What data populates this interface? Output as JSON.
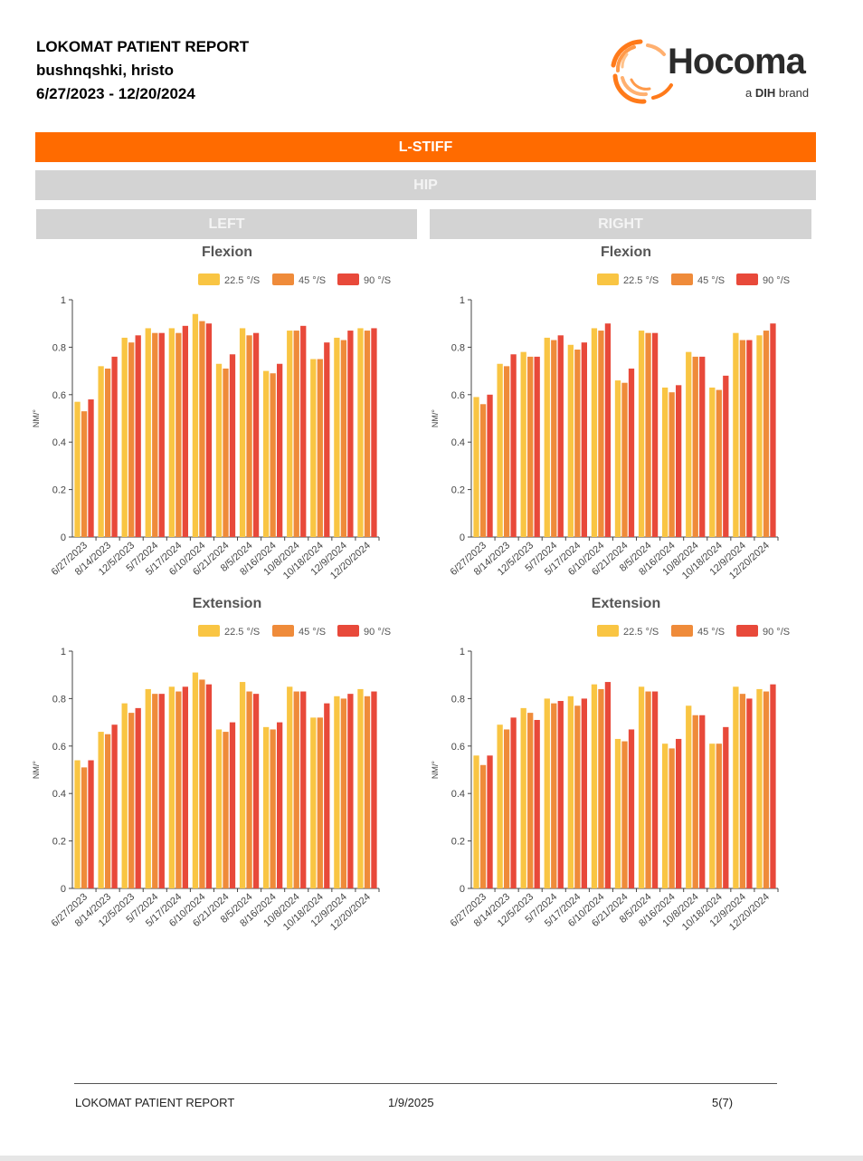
{
  "header": {
    "title": "LOKOMAT PATIENT REPORT",
    "patient": "bushnqshki, hristo",
    "date_range": "6/27/2023 - 12/20/2024"
  },
  "logo": {
    "name": "Hocoma",
    "sub_prefix": "a ",
    "sub_brand": "DIH",
    "sub_suffix": " brand",
    "icon": "sunburst-logo-icon",
    "color": "#ff7a1a"
  },
  "sections": {
    "module": "L-STIFF",
    "joint": "HIP",
    "left": "LEFT",
    "right": "RIGHT"
  },
  "colors": {
    "accent": "#ff6b00",
    "band": "#d3d3d3",
    "series": [
      "#f9c543",
      "#ef8b3a",
      "#e8493a"
    ]
  },
  "chart_data": [
    {
      "type": "bar",
      "side": "LEFT",
      "title": "Flexion",
      "ylabel": "NM/°",
      "ylim": [
        0,
        1
      ],
      "yticks": [
        "0",
        "0.2",
        "0.4",
        "0.6",
        "0.8",
        "1"
      ],
      "categories": [
        "6/27/2023",
        "8/14/2023",
        "12/5/2023",
        "5/7/2024",
        "5/17/2024",
        "6/10/2024",
        "6/21/2024",
        "8/5/2024",
        "8/16/2024",
        "10/8/2024",
        "10/18/2024",
        "12/9/2024",
        "12/20/2024"
      ],
      "series": [
        {
          "name": "22.5 °/S",
          "values": [
            0.57,
            0.72,
            0.84,
            0.88,
            0.88,
            0.94,
            0.73,
            0.88,
            0.7,
            0.87,
            0.75,
            0.84,
            0.88
          ]
        },
        {
          "name": "45 °/S",
          "values": [
            0.53,
            0.71,
            0.82,
            0.86,
            0.86,
            0.91,
            0.71,
            0.85,
            0.69,
            0.87,
            0.75,
            0.83,
            0.87
          ]
        },
        {
          "name": "90 °/S",
          "values": [
            0.58,
            0.76,
            0.85,
            0.86,
            0.89,
            0.9,
            0.77,
            0.86,
            0.73,
            0.89,
            0.82,
            0.87,
            0.88
          ]
        }
      ]
    },
    {
      "type": "bar",
      "side": "RIGHT",
      "title": "Flexion",
      "ylabel": "NM/°",
      "ylim": [
        0,
        1
      ],
      "yticks": [
        "0",
        "0.2",
        "0.4",
        "0.6",
        "0.8",
        "1"
      ],
      "categories": [
        "6/27/2023",
        "8/14/2023",
        "12/5/2023",
        "5/7/2024",
        "5/17/2024",
        "6/10/2024",
        "6/21/2024",
        "8/5/2024",
        "8/16/2024",
        "10/8/2024",
        "10/18/2024",
        "12/9/2024",
        "12/20/2024"
      ],
      "series": [
        {
          "name": "22.5 °/S",
          "values": [
            0.59,
            0.73,
            0.78,
            0.84,
            0.81,
            0.88,
            0.66,
            0.87,
            0.63,
            0.78,
            0.63,
            0.86,
            0.85
          ]
        },
        {
          "name": "45 °/S",
          "values": [
            0.56,
            0.72,
            0.76,
            0.83,
            0.79,
            0.87,
            0.65,
            0.86,
            0.61,
            0.76,
            0.62,
            0.83,
            0.87
          ]
        },
        {
          "name": "90 °/S",
          "values": [
            0.6,
            0.77,
            0.76,
            0.85,
            0.82,
            0.9,
            0.71,
            0.86,
            0.64,
            0.76,
            0.68,
            0.83,
            0.9
          ]
        }
      ]
    },
    {
      "type": "bar",
      "side": "LEFT",
      "title": "Extension",
      "ylabel": "NM/°",
      "ylim": [
        0,
        1
      ],
      "yticks": [
        "0",
        "0.2",
        "0.4",
        "0.6",
        "0.8",
        "1"
      ],
      "categories": [
        "6/27/2023",
        "8/14/2023",
        "12/5/2023",
        "5/7/2024",
        "5/17/2024",
        "6/10/2024",
        "6/21/2024",
        "8/5/2024",
        "8/16/2024",
        "10/8/2024",
        "10/18/2024",
        "12/9/2024",
        "12/20/2024"
      ],
      "series": [
        {
          "name": "22.5 °/S",
          "values": [
            0.54,
            0.66,
            0.78,
            0.84,
            0.85,
            0.91,
            0.67,
            0.87,
            0.68,
            0.85,
            0.72,
            0.81,
            0.84
          ]
        },
        {
          "name": "45 °/S",
          "values": [
            0.51,
            0.65,
            0.74,
            0.82,
            0.83,
            0.88,
            0.66,
            0.83,
            0.67,
            0.83,
            0.72,
            0.8,
            0.81
          ]
        },
        {
          "name": "90 °/S",
          "values": [
            0.54,
            0.69,
            0.76,
            0.82,
            0.85,
            0.86,
            0.7,
            0.82,
            0.7,
            0.83,
            0.78,
            0.82,
            0.83
          ]
        }
      ]
    },
    {
      "type": "bar",
      "side": "RIGHT",
      "title": "Extension",
      "ylabel": "NM/°",
      "ylim": [
        0,
        1
      ],
      "yticks": [
        "0",
        "0.2",
        "0.4",
        "0.6",
        "0.8",
        "1"
      ],
      "categories": [
        "6/27/2023",
        "8/14/2023",
        "12/5/2023",
        "5/7/2024",
        "5/17/2024",
        "6/10/2024",
        "6/21/2024",
        "8/5/2024",
        "8/16/2024",
        "10/8/2024",
        "10/18/2024",
        "12/9/2024",
        "12/20/2024"
      ],
      "series": [
        {
          "name": "22.5 °/S",
          "values": [
            0.56,
            0.69,
            0.76,
            0.8,
            0.81,
            0.86,
            0.63,
            0.85,
            0.61,
            0.77,
            0.61,
            0.85,
            0.84
          ]
        },
        {
          "name": "45 °/S",
          "values": [
            0.52,
            0.67,
            0.74,
            0.78,
            0.77,
            0.84,
            0.62,
            0.83,
            0.59,
            0.73,
            0.61,
            0.82,
            0.83
          ]
        },
        {
          "name": "90 °/S",
          "values": [
            0.56,
            0.72,
            0.71,
            0.79,
            0.8,
            0.87,
            0.67,
            0.83,
            0.63,
            0.73,
            0.68,
            0.8,
            0.86
          ]
        }
      ]
    }
  ],
  "footer": {
    "left": "LOKOMAT PATIENT REPORT",
    "center": "1/9/2025",
    "right": "5(7)"
  }
}
